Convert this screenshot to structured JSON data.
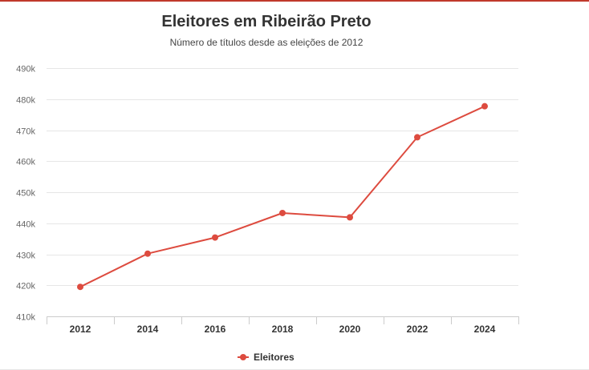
{
  "chart_data": {
    "type": "line",
    "title": "Eleitores em Ribeirão Preto",
    "subtitle": "Número de títulos desde as eleições de 2012",
    "x": [
      "2012",
      "2014",
      "2016",
      "2018",
      "2020",
      "2022",
      "2024"
    ],
    "series": [
      {
        "name": "Eleitores",
        "values": [
          419500,
          430200,
          435400,
          443300,
          441900,
          467700,
          477700
        ],
        "color": "#dd4b3f"
      }
    ],
    "ylim": [
      410000,
      490000
    ],
    "yticks": [
      {
        "value": 410000,
        "label": "410k"
      },
      {
        "value": 420000,
        "label": "420k"
      },
      {
        "value": 430000,
        "label": "430k"
      },
      {
        "value": 440000,
        "label": "440k"
      },
      {
        "value": 450000,
        "label": "450k"
      },
      {
        "value": 460000,
        "label": "460k"
      },
      {
        "value": 470000,
        "label": "470k"
      },
      {
        "value": 480000,
        "label": "480k"
      },
      {
        "value": 490000,
        "label": "490k"
      }
    ],
    "grid": true,
    "legend": "bottom-center"
  }
}
